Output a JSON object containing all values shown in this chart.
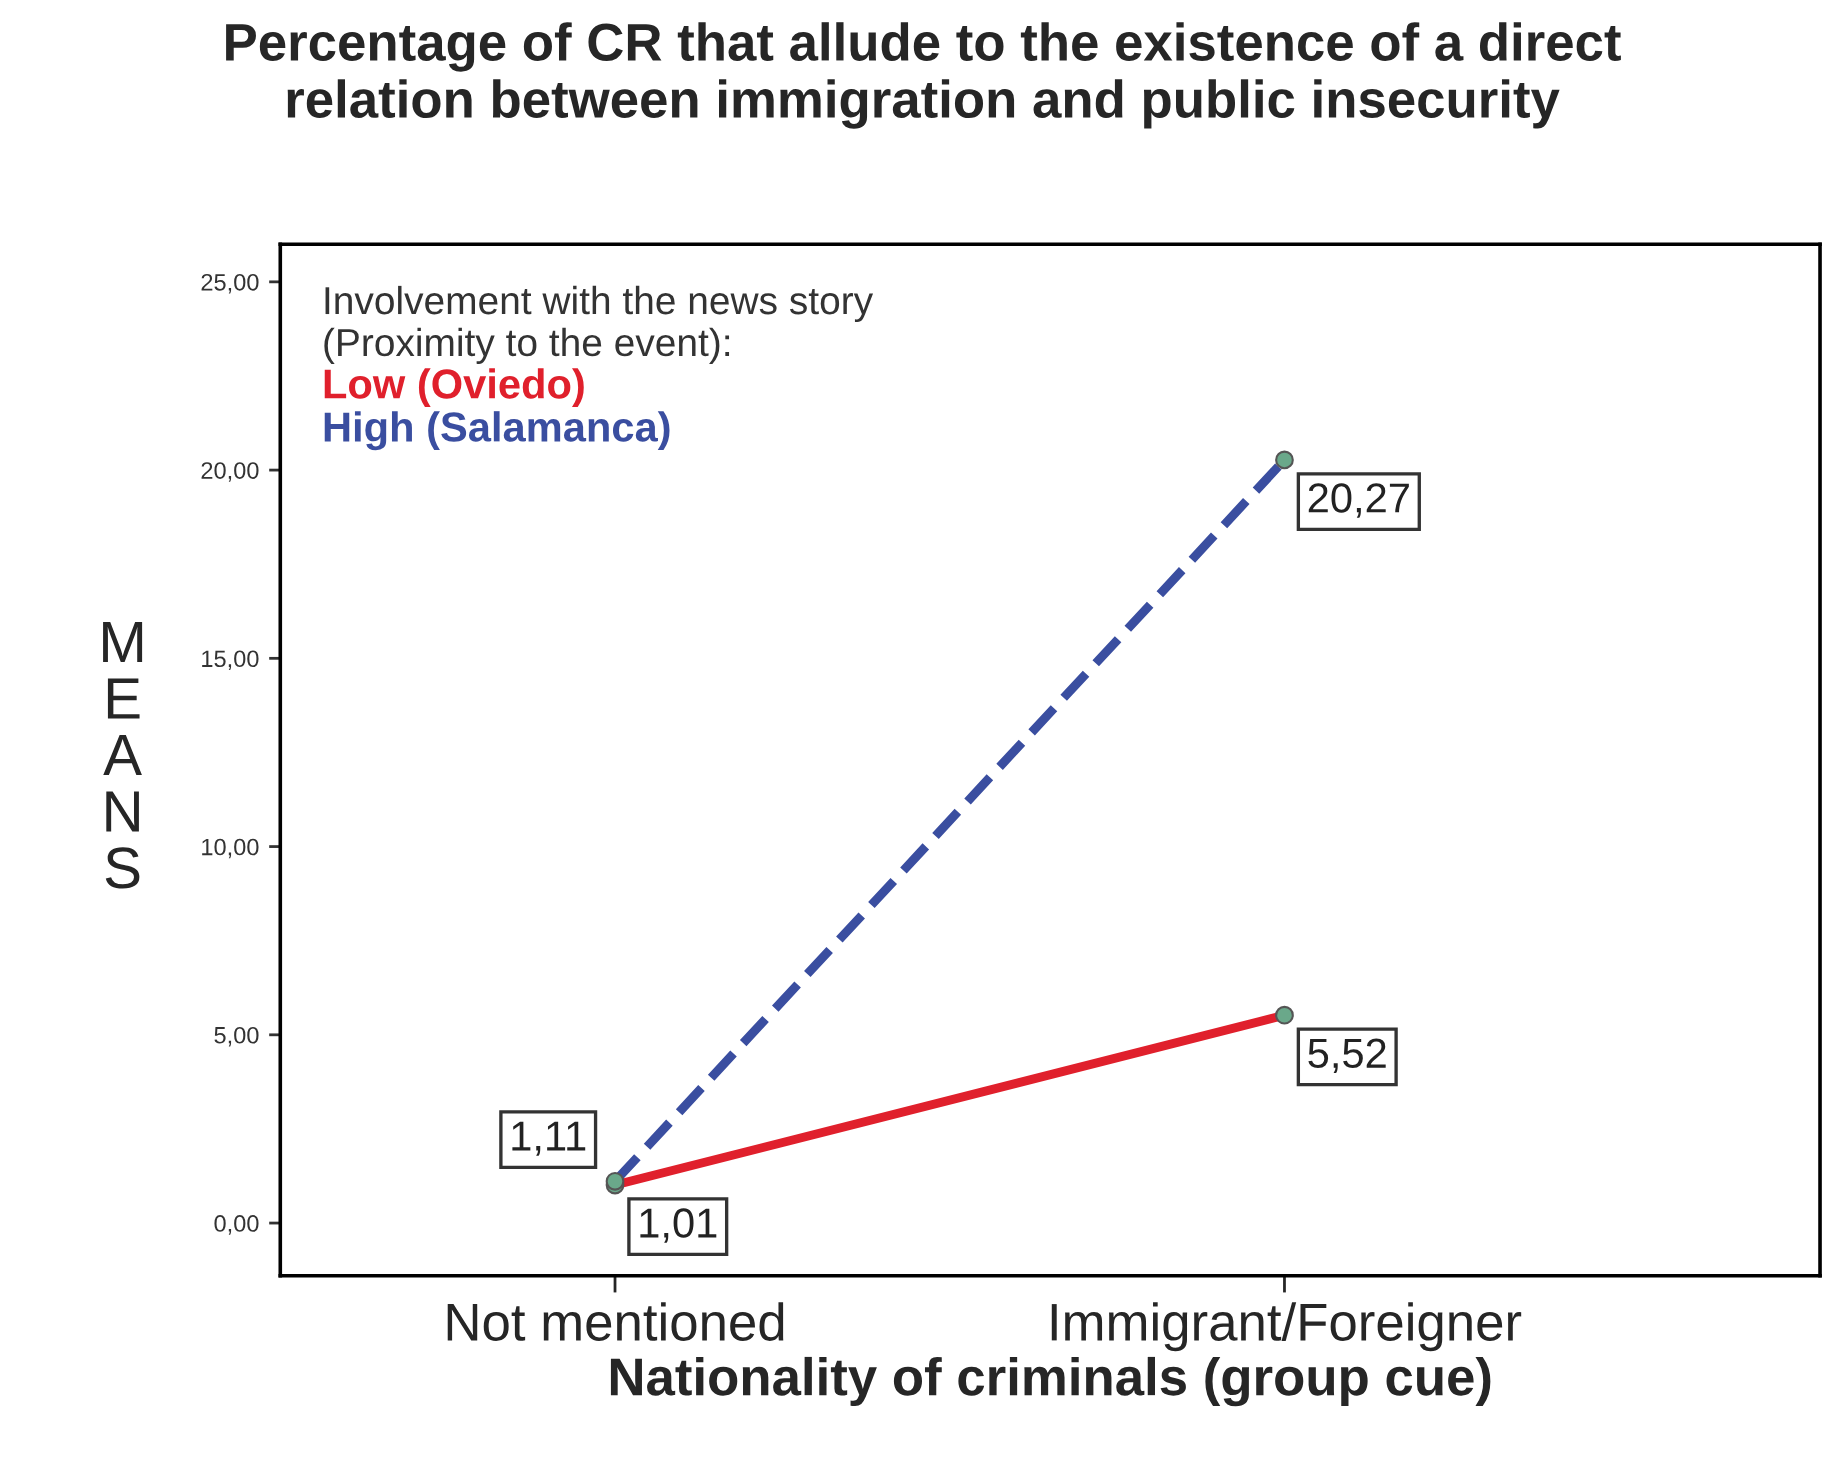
{
  "chart_data": {
    "type": "line",
    "title": "Percentage of CR that allude to the existence of a direct\nrelation between immigration and public insecurity",
    "xlabel": "Nationality of criminals (group cue)",
    "ylabel": "MEANS",
    "legend_title": "Involvement with the news story\n(Proximity to the event):",
    "categories": [
      "Not mentioned",
      "Immigrant/Foreigner"
    ],
    "series": [
      {
        "name": "Low (Oviedo)",
        "color": "#e0202c",
        "line_style": "solid",
        "values": [
          1.01,
          5.52
        ],
        "value_labels": [
          "1,01",
          "5,52"
        ]
      },
      {
        "name": "High (Salamanca)",
        "color": "#3a4ea0",
        "line_style": "dashed",
        "values": [
          1.11,
          20.27
        ],
        "value_labels": [
          "1,11",
          "20,27"
        ]
      }
    ],
    "ylim": [
      -1.4,
      26
    ],
    "yticks": [
      {
        "value": 0,
        "label": "0,00"
      },
      {
        "value": 5,
        "label": "5,00"
      },
      {
        "value": 10,
        "label": "10,00"
      },
      {
        "value": 15,
        "label": "15,00"
      },
      {
        "value": 20,
        "label": "20,00"
      },
      {
        "value": 25,
        "label": "25,00"
      }
    ],
    "grid": false,
    "legend": "top left",
    "marker": "circle"
  }
}
